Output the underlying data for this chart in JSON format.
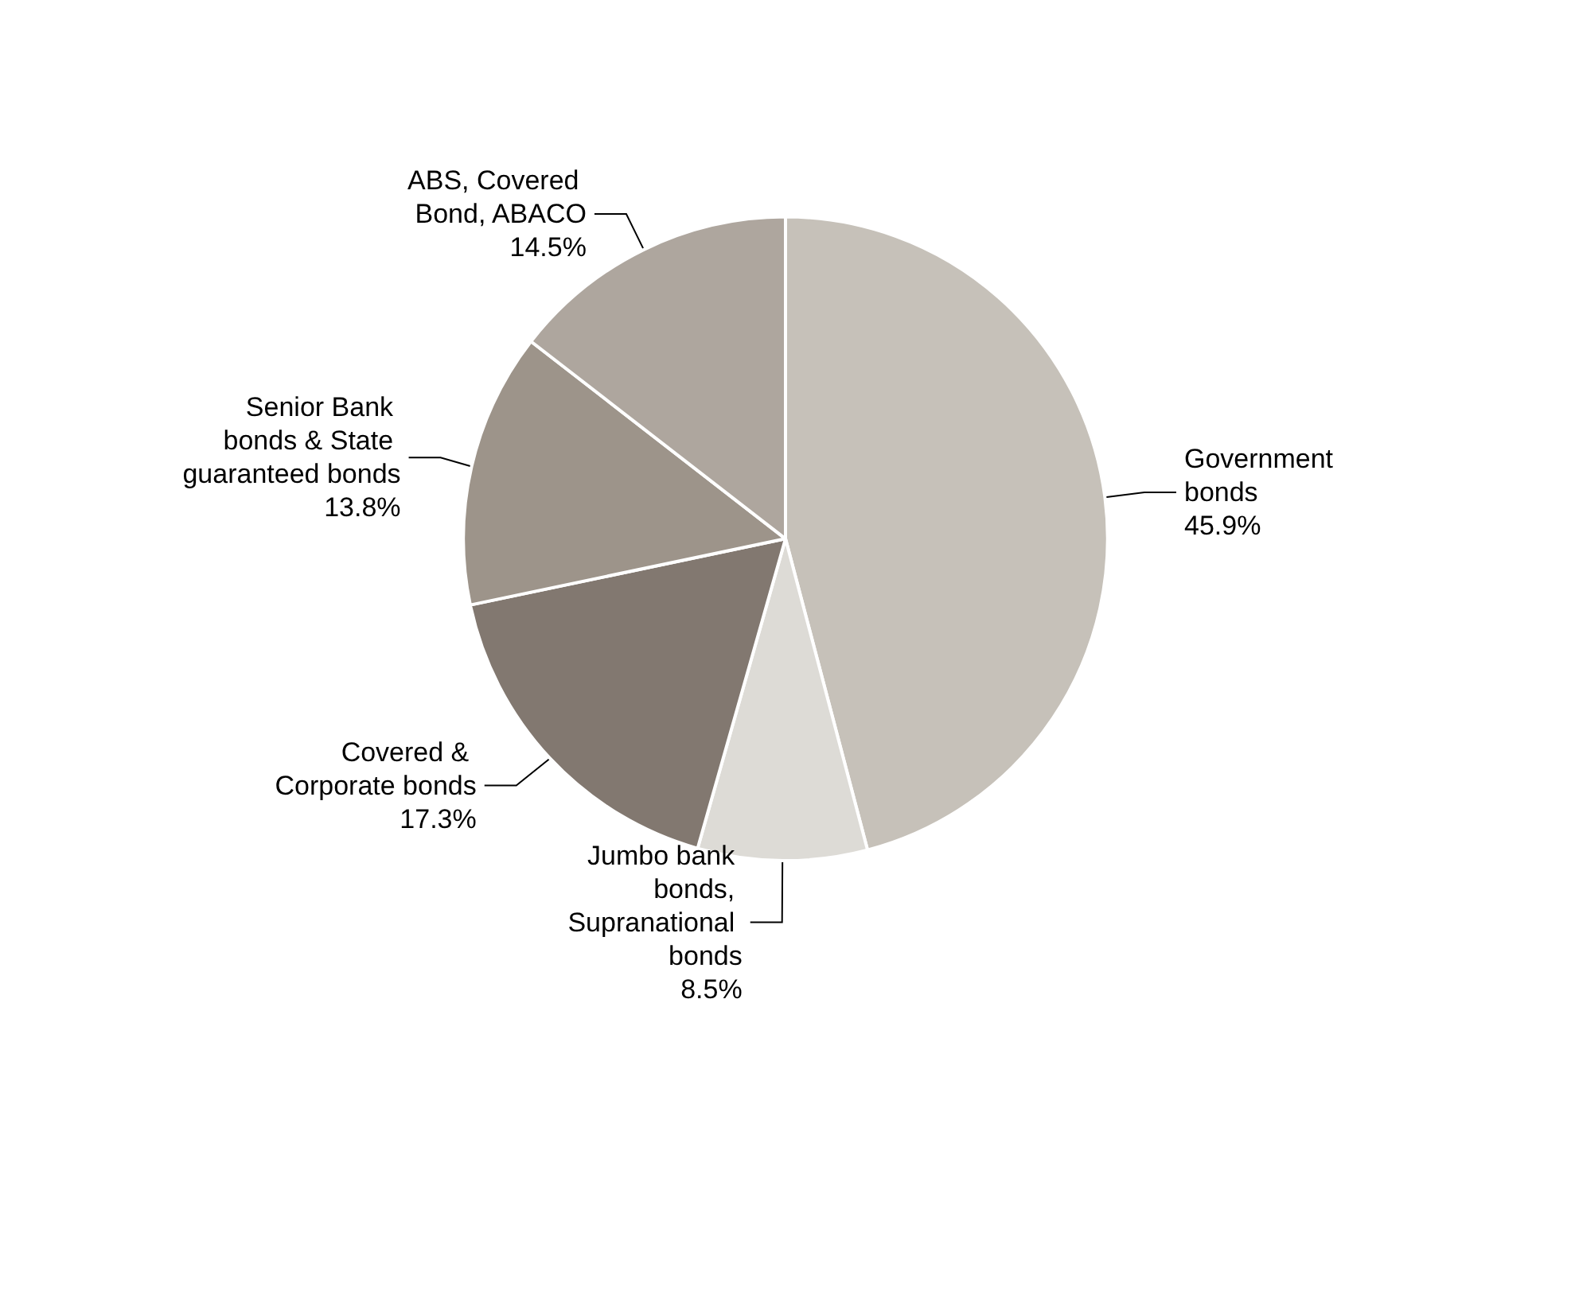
{
  "chart_data": {
    "type": "pie",
    "categories": [
      "Government bonds",
      "Jumbo bank bonds, Supranational bonds",
      "Covered & Corporate bonds",
      "Senior Bank bonds & State guaranteed bonds",
      "ABS, Covered Bond, ABACO"
    ],
    "values": [
      45.9,
      8.5,
      17.3,
      13.8,
      14.5
    ],
    "value_labels": [
      "45.9%",
      "8.5%",
      "17.3%",
      "13.8%",
      "14.5%"
    ],
    "colors": [
      "#c6c1b9",
      "#dddbd6",
      "#827870",
      "#9d948a",
      "#aea69e"
    ],
    "legend": false
  }
}
